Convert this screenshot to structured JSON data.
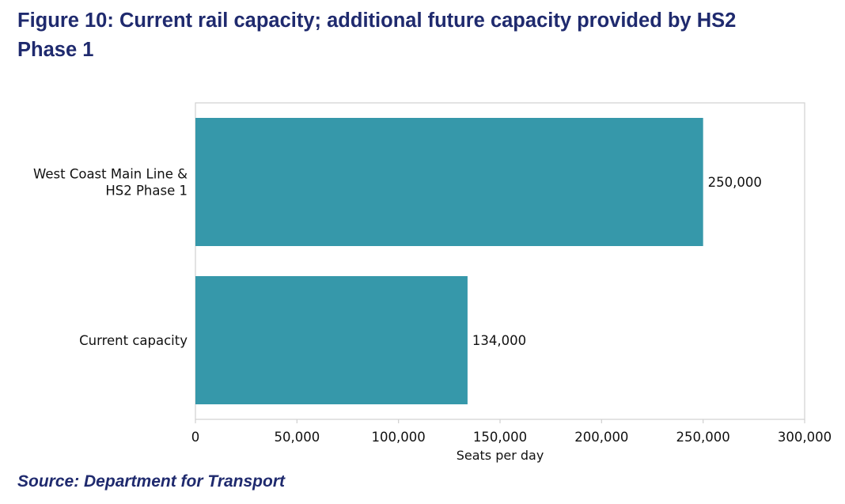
{
  "title_lines": [
    "Figure 10: Current rail capacity; additional future capacity provided by HS2",
    "Phase 1"
  ],
  "source": "Source: Department for Transport",
  "colors": {
    "bar": "#3698aa",
    "title": "#1f2a6e",
    "frame": "#d0d0d0"
  },
  "chart_data": {
    "type": "bar",
    "orientation": "horizontal",
    "title": "Figure 10: Current rail capacity; additional future capacity provided by HS2 Phase 1",
    "categories": [
      {
        "lines": [
          "West Coast Main Line &",
          "HS2 Phase 1"
        ],
        "value": 250000,
        "label": "250,000"
      },
      {
        "lines": [
          "Current capacity"
        ],
        "value": 134000,
        "label": "134,000"
      }
    ],
    "xlabel": "Seats per day",
    "xlim": [
      0,
      300000
    ],
    "xticks": [
      0,
      50000,
      100000,
      150000,
      200000,
      250000,
      300000
    ],
    "xtick_labels": [
      "0",
      "50,000",
      "100,000",
      "150,000",
      "200,000",
      "250,000",
      "300,000"
    ],
    "grid": false,
    "legend": "none"
  }
}
